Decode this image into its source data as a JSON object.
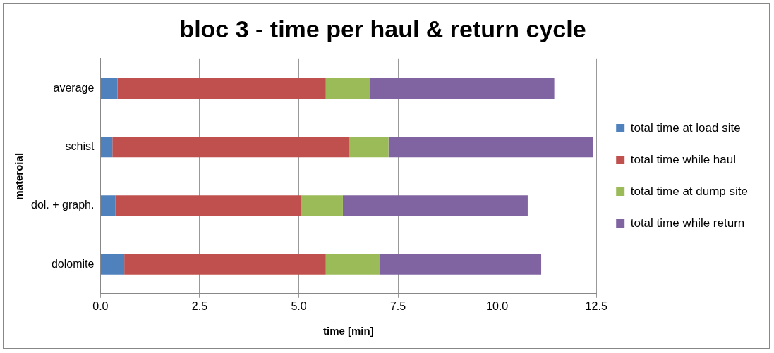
{
  "chart_data": {
    "type": "bar",
    "orientation": "horizontal",
    "stacked": true,
    "title": "bloc 3 - time per haul & return cycle",
    "xlabel": "time [min]",
    "ylabel": "materoial",
    "categories": [
      "average",
      "schist",
      "dol. + graph.",
      "dolomite"
    ],
    "series": [
      {
        "name": "total time at load site",
        "color": "#4f81bd",
        "values": [
          0.43,
          0.3,
          0.38,
          0.6
        ]
      },
      {
        "name": "total time while haul",
        "color": "#c0504d",
        "values": [
          5.25,
          5.98,
          4.69,
          5.08
        ]
      },
      {
        "name": "total time at dump site",
        "color": "#9bbb59",
        "values": [
          1.12,
          0.98,
          1.04,
          1.37
        ]
      },
      {
        "name": "total time while return",
        "color": "#8064a2",
        "values": [
          4.64,
          5.16,
          4.66,
          4.06
        ]
      }
    ],
    "xlim": [
      0,
      12.5
    ],
    "xticks": [
      {
        "value": 0,
        "label": "0.0"
      },
      {
        "value": 2.5,
        "label": "2.5"
      },
      {
        "value": 5,
        "label": "5.0"
      },
      {
        "value": 7.5,
        "label": "7.5"
      },
      {
        "value": 10,
        "label": "10.0"
      },
      {
        "value": 12.5,
        "label": "12.5"
      }
    ],
    "grid": "x",
    "legend": "right"
  }
}
